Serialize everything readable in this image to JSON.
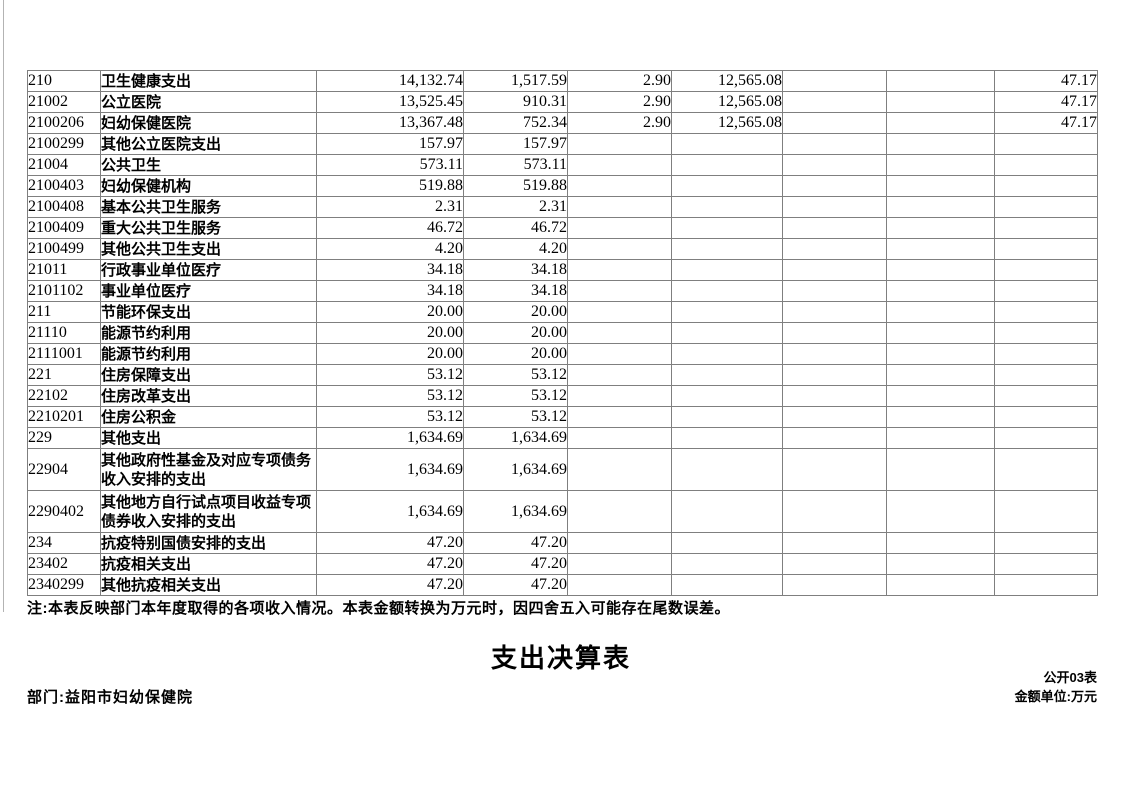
{
  "page": {
    "note": "注:本表反映部门本年度取得的各项收入情况。本表金额转换为万元时，因四舍五入可能存在尾数误差。",
    "title": "支出决算表",
    "form_code": "公开03表",
    "department": "部门:益阳市妇幼保健院",
    "unit": "金额单位:万元"
  },
  "table": {
    "rows": [
      {
        "code": "210",
        "name": "卫生健康支出",
        "values": [
          "14,132.74",
          "1,517.59",
          "2.90",
          "12,565.08",
          "",
          "",
          "47.17"
        ]
      },
      {
        "code": "21002",
        "name": "公立医院",
        "values": [
          "13,525.45",
          "910.31",
          "2.90",
          "12,565.08",
          "",
          "",
          "47.17"
        ]
      },
      {
        "code": "2100206",
        "name": "妇幼保健医院",
        "values": [
          "13,367.48",
          "752.34",
          "2.90",
          "12,565.08",
          "",
          "",
          "47.17"
        ]
      },
      {
        "code": "2100299",
        "name": "其他公立医院支出",
        "values": [
          "157.97",
          "157.97",
          "",
          "",
          "",
          "",
          ""
        ]
      },
      {
        "code": "21004",
        "name": "公共卫生",
        "values": [
          "573.11",
          "573.11",
          "",
          "",
          "",
          "",
          ""
        ]
      },
      {
        "code": "2100403",
        "name": "妇幼保健机构",
        "values": [
          "519.88",
          "519.88",
          "",
          "",
          "",
          "",
          ""
        ]
      },
      {
        "code": "2100408",
        "name": "基本公共卫生服务",
        "values": [
          "2.31",
          "2.31",
          "",
          "",
          "",
          "",
          ""
        ]
      },
      {
        "code": "2100409",
        "name": "重大公共卫生服务",
        "values": [
          "46.72",
          "46.72",
          "",
          "",
          "",
          "",
          ""
        ]
      },
      {
        "code": "2100499",
        "name": "其他公共卫生支出",
        "values": [
          "4.20",
          "4.20",
          "",
          "",
          "",
          "",
          ""
        ]
      },
      {
        "code": "21011",
        "name": "行政事业单位医疗",
        "values": [
          "34.18",
          "34.18",
          "",
          "",
          "",
          "",
          ""
        ]
      },
      {
        "code": "2101102",
        "name": "事业单位医疗",
        "values": [
          "34.18",
          "34.18",
          "",
          "",
          "",
          "",
          ""
        ]
      },
      {
        "code": "211",
        "name": "节能环保支出",
        "values": [
          "20.00",
          "20.00",
          "",
          "",
          "",
          "",
          ""
        ]
      },
      {
        "code": "21110",
        "name": "能源节约利用",
        "values": [
          "20.00",
          "20.00",
          "",
          "",
          "",
          "",
          ""
        ]
      },
      {
        "code": "2111001",
        "name": "能源节约利用",
        "values": [
          "20.00",
          "20.00",
          "",
          "",
          "",
          "",
          ""
        ]
      },
      {
        "code": "221",
        "name": "住房保障支出",
        "values": [
          "53.12",
          "53.12",
          "",
          "",
          "",
          "",
          ""
        ]
      },
      {
        "code": "22102",
        "name": "住房改革支出",
        "values": [
          "53.12",
          "53.12",
          "",
          "",
          "",
          "",
          ""
        ]
      },
      {
        "code": "2210201",
        "name": "住房公积金",
        "values": [
          "53.12",
          "53.12",
          "",
          "",
          "",
          "",
          ""
        ]
      },
      {
        "code": "229",
        "name": "其他支出",
        "values": [
          "1,634.69",
          "1,634.69",
          "",
          "",
          "",
          "",
          ""
        ]
      },
      {
        "code": "22904",
        "name": "其他政府性基金及对应专项债务收入安排的支出",
        "values": [
          "1,634.69",
          "1,634.69",
          "",
          "",
          "",
          "",
          ""
        ]
      },
      {
        "code": "2290402",
        "name": "其他地方自行试点项目收益专项债券收入安排的支出",
        "values": [
          "1,634.69",
          "1,634.69",
          "",
          "",
          "",
          "",
          ""
        ]
      },
      {
        "code": "234",
        "name": "抗疫特别国债安排的支出",
        "values": [
          "47.20",
          "47.20",
          "",
          "",
          "",
          "",
          ""
        ]
      },
      {
        "code": "23402",
        "name": "抗疫相关支出",
        "values": [
          "47.20",
          "47.20",
          "",
          "",
          "",
          "",
          ""
        ]
      },
      {
        "code": "2340299",
        "name": "其他抗疫相关支出",
        "values": [
          "47.20",
          "47.20",
          "",
          "",
          "",
          "",
          ""
        ]
      }
    ]
  }
}
